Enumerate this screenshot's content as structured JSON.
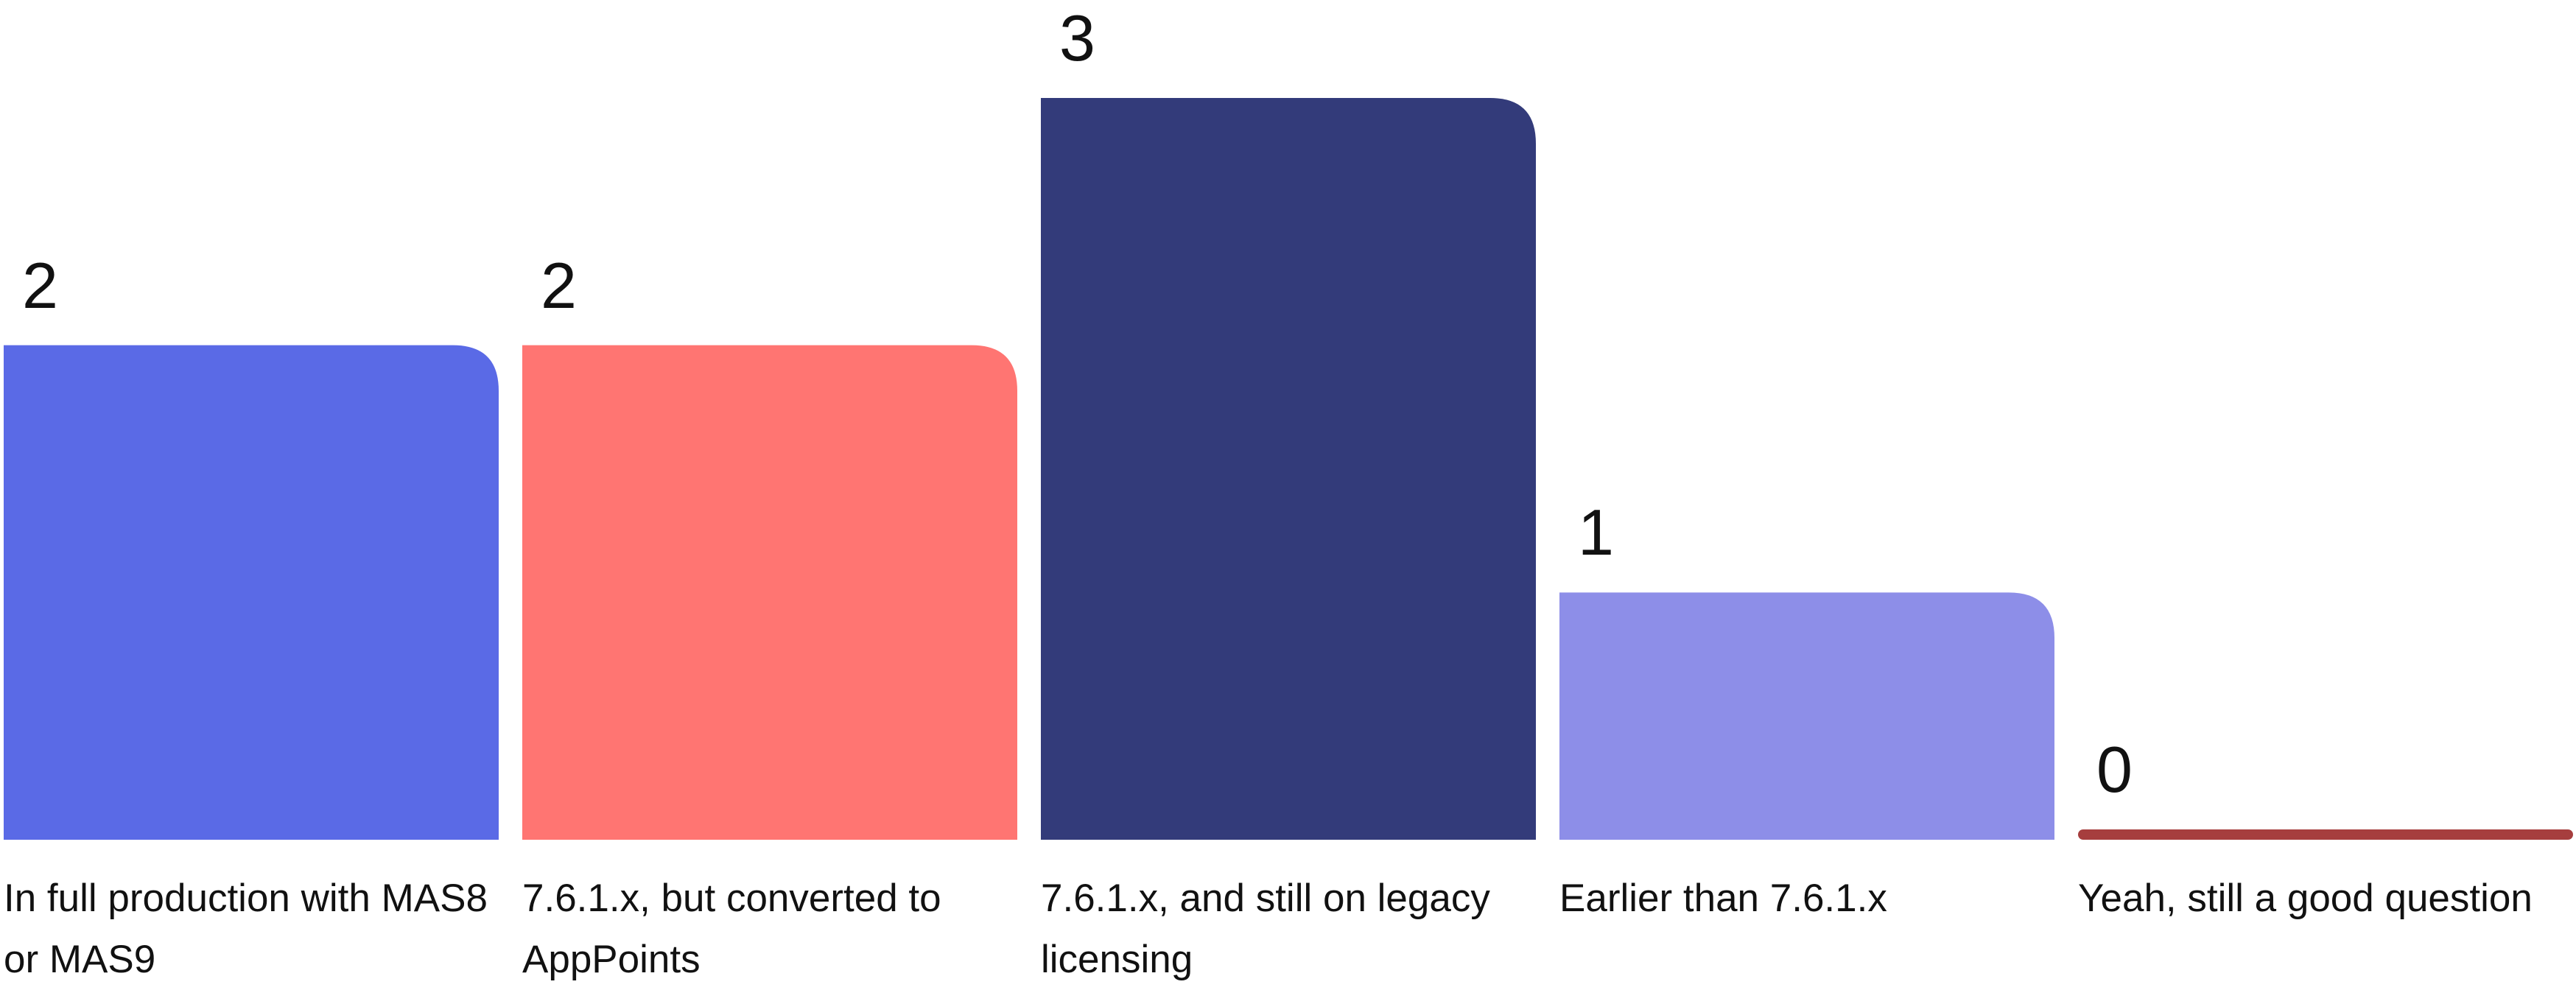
{
  "chart_data": {
    "type": "bar",
    "categories": [
      "In full production with MAS8 or MAS9",
      "7.6.1.x, but converted to AppPoints",
      "7.6.1.x, and still on legacy licensing",
      "Earlier than 7.6.1.x",
      "Yeah, still a good question"
    ],
    "values": [
      2,
      2,
      3,
      1,
      0
    ],
    "value_labels": [
      "2",
      "2",
      "3",
      "1",
      "0"
    ],
    "colors": [
      "#5a6ae6",
      "#ff7572",
      "#333b7a",
      "#8d8ee8",
      "#a63e3e"
    ],
    "ylim": [
      0,
      3
    ],
    "grid": false,
    "legend": "none",
    "title": "",
    "xlabel": "",
    "ylabel": ""
  }
}
